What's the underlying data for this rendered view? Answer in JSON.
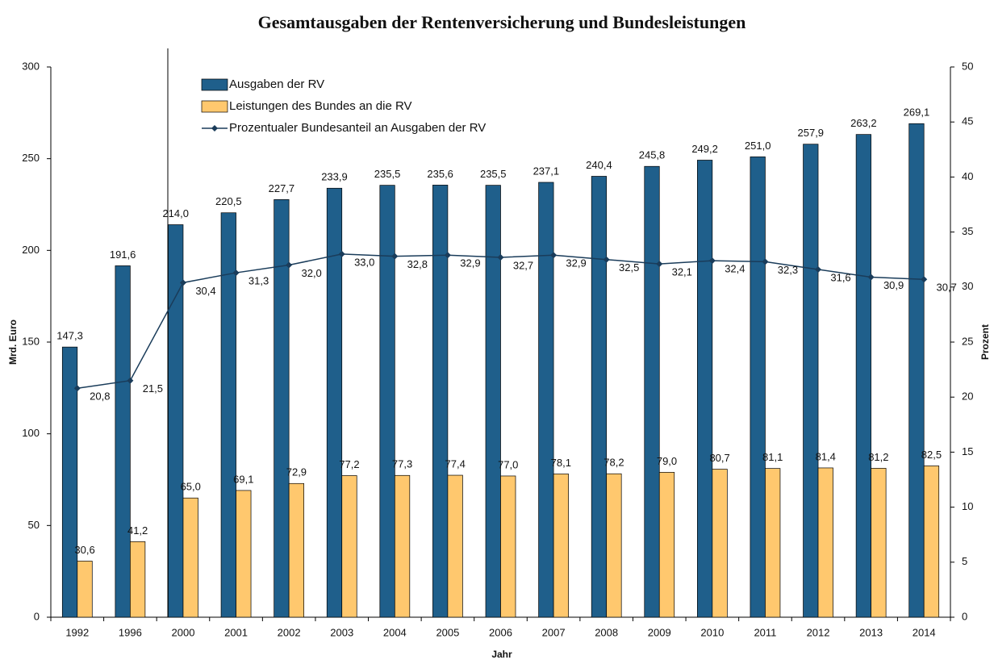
{
  "chart_data": {
    "type": "bar",
    "title": "Gesamtausgaben der Rentenversicherung und Bundesleistungen",
    "x_label": "Jahr",
    "y_label": "Mrd. Euro",
    "y2_label": "Prozent",
    "categories": [
      "1992",
      "1996",
      "2000",
      "2001",
      "2002",
      "2003",
      "2004",
      "2005",
      "2006",
      "2007",
      "2008",
      "2009",
      "2010",
      "2011",
      "2012",
      "2013",
      "2014"
    ],
    "series": [
      {
        "name": "Ausgaben der RV",
        "type": "bar",
        "color": "#1f5f8b",
        "values": [
          147.3,
          191.6,
          214.0,
          220.5,
          227.7,
          233.9,
          235.5,
          235.6,
          235.5,
          237.1,
          240.4,
          245.8,
          249.2,
          251.0,
          257.9,
          263.2,
          269.1
        ],
        "value_labels": [
          "147,3",
          "191,6",
          "214,0",
          "220,5",
          "227,7",
          "233,9",
          "235,5",
          "235,6",
          "235,5",
          "237,1",
          "240,4",
          "245,8",
          "249,2",
          "251,0",
          "257,9",
          "263,2",
          "269,1"
        ]
      },
      {
        "name": "Leistungen des Bundes an die RV",
        "type": "bar",
        "color": "#ffc86e",
        "values": [
          30.6,
          41.2,
          65.0,
          69.1,
          72.9,
          77.2,
          77.3,
          77.4,
          77.0,
          78.1,
          78.2,
          79.0,
          80.7,
          81.1,
          81.4,
          81.2,
          82.5
        ],
        "value_labels": [
          "30,6",
          "41,2",
          "65,0",
          "69,1",
          "72,9",
          "77,2",
          "77,3",
          "77,4",
          "77,0",
          "78,1",
          "78,2",
          "79,0",
          "80,7",
          "81,1",
          "81,4",
          "81,2",
          "82,5"
        ]
      },
      {
        "name": "Prozentualer Bundesanteil an Ausgaben der RV",
        "type": "line",
        "axis": "y2",
        "color": "#1a3c5a",
        "values": [
          20.8,
          21.5,
          30.4,
          31.3,
          32.0,
          33.0,
          32.8,
          32.9,
          32.7,
          32.9,
          32.5,
          32.1,
          32.4,
          32.3,
          31.6,
          30.9,
          30.7
        ],
        "value_labels": [
          "20,8",
          "21,5",
          "30,4",
          "31,3",
          "32,0",
          "33,0",
          "32,8",
          "32,9",
          "32,7",
          "32,9",
          "32,5",
          "32,1",
          "32,4",
          "32,3",
          "31,6",
          "30,9",
          "30,7"
        ]
      }
    ],
    "ylim": [
      0,
      300
    ],
    "yticks": [
      0,
      50,
      100,
      150,
      200,
      250,
      300
    ],
    "y2lim": [
      0,
      50
    ],
    "y2ticks": [
      0,
      5,
      10,
      15,
      20,
      25,
      30,
      35,
      40,
      45,
      50
    ],
    "grid": false,
    "legend": "top-left"
  }
}
